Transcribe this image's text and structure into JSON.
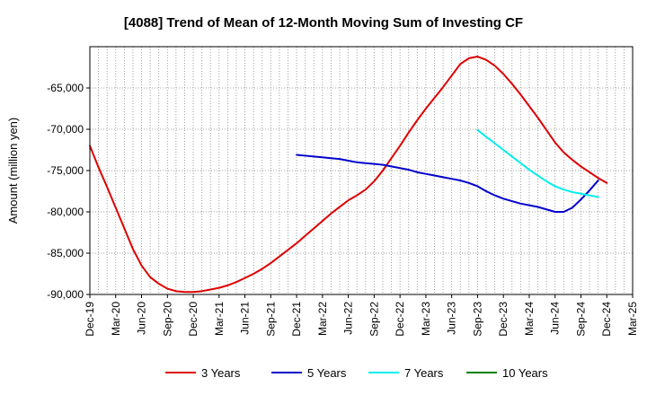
{
  "chart_data": {
    "type": "line",
    "title": "[4088]  Trend of Mean of 12-Month Moving Sum of Investing CF",
    "xlabel": "",
    "ylabel": "Amount (million yen)",
    "ylim": [
      -90000,
      -60000
    ],
    "yticks": [
      -90000,
      -85000,
      -80000,
      -75000,
      -70000,
      -65000
    ],
    "ytick_labels": [
      "-90,000",
      "-85,000",
      "-80,000",
      "-75,000",
      "-70,000",
      "-65,000"
    ],
    "xticks": [
      "Dec-19",
      "Mar-20",
      "Jun-20",
      "Sep-20",
      "Dec-20",
      "Mar-21",
      "Jun-21",
      "Sep-21",
      "Dec-21",
      "Mar-22",
      "Jun-22",
      "Sep-22",
      "Dec-22",
      "Mar-23",
      "Jun-23",
      "Sep-23",
      "Dec-23",
      "Mar-24",
      "Jun-24",
      "Sep-24",
      "Dec-24",
      "Mar-25"
    ],
    "grid": true,
    "legend_position": "bottom",
    "series": [
      {
        "name": "3 Years",
        "color": "#dd0000",
        "start_month_index": 0,
        "values": [
          -72000,
          -74600,
          -77000,
          -79500,
          -82000,
          -84500,
          -86500,
          -87900,
          -88700,
          -89300,
          -89600,
          -89700,
          -89700,
          -89600,
          -89400,
          -89200,
          -88900,
          -88500,
          -88000,
          -87500,
          -86900,
          -86200,
          -85400,
          -84600,
          -83800,
          -82900,
          -82000,
          -81100,
          -80200,
          -79400,
          -78600,
          -78000,
          -77300,
          -76300,
          -75000,
          -73500,
          -72000,
          -70400,
          -68900,
          -67500,
          -66200,
          -64900,
          -63500,
          -62100,
          -61400,
          -61200,
          -61600,
          -62300,
          -63300,
          -64500,
          -65800,
          -67200,
          -68600,
          -70100,
          -71600,
          -72800,
          -73700,
          -74500,
          -75200,
          -75900,
          -76500
        ]
      },
      {
        "name": "5 Years",
        "color": "#0000cc",
        "start_month_index": 24,
        "values": [
          -73100,
          -73200,
          -73300,
          -73400,
          -73500,
          -73600,
          -73800,
          -74000,
          -74100,
          -74200,
          -74300,
          -74500,
          -74700,
          -74900,
          -75200,
          -75400,
          -75600,
          -75800,
          -76000,
          -76200,
          -76500,
          -76900,
          -77500,
          -78000,
          -78400,
          -78700,
          -79000,
          -79200,
          -79400,
          -79700,
          -80000,
          -80000,
          -79500,
          -78500,
          -77400,
          -76200
        ]
      },
      {
        "name": "7 Years",
        "color": "#00eeee",
        "start_month_index": 45,
        "values": [
          -70100,
          -70900,
          -71700,
          -72500,
          -73300,
          -74100,
          -74900,
          -75600,
          -76300,
          -76900,
          -77300,
          -77600,
          -77800,
          -78000,
          -78200
        ]
      },
      {
        "name": "10 Years",
        "color": "#008000",
        "start_month_index": 0,
        "values": []
      }
    ]
  }
}
